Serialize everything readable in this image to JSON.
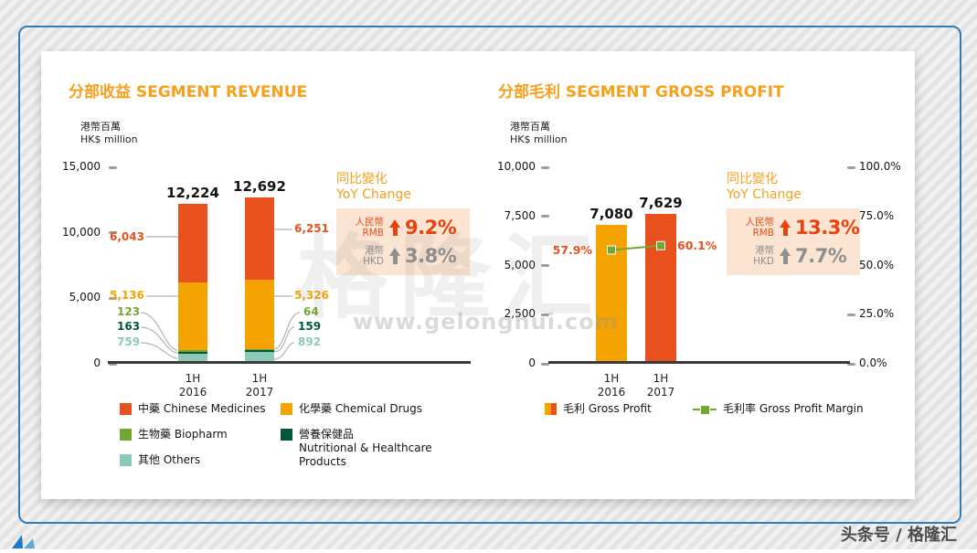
{
  "page": {
    "watermark_brand": "格隆汇",
    "watermark_url": "www.gelonghui.com",
    "footer_credit": "头条号 / 格隆汇"
  },
  "chart_data": [
    {
      "type": "bar",
      "stacked": true,
      "title": "分部收益 SEGMENT REVENUE",
      "unit_cn": "港幣百萬",
      "unit_en": "HK$ million",
      "ylabel": "HK$ million",
      "ylim": [
        0,
        15000
      ],
      "yticks": [
        {
          "value": 15000,
          "label": "15,000"
        },
        {
          "value": 10000,
          "label": "10,000"
        },
        {
          "value": 5000,
          "label": "5,000"
        },
        {
          "value": 0,
          "label": "0"
        }
      ],
      "categories": [
        "1H 2016",
        "1H 2017"
      ],
      "totals": [
        12224,
        12692
      ],
      "total_labels": [
        "12,224",
        "12,692"
      ],
      "series": [
        {
          "name_cn": "中藥",
          "name_en": "Chinese Medicines",
          "color": "#E8501E",
          "values": [
            6043,
            6251
          ],
          "labels": [
            "6,043",
            "6,251"
          ]
        },
        {
          "name_cn": "化學藥",
          "name_en": "Chemical Drugs",
          "color": "#F5A300",
          "values": [
            5136,
            5326
          ],
          "labels": [
            "5,136",
            "5,326"
          ]
        },
        {
          "name_cn": "生物藥",
          "name_en": "Biopharm",
          "color": "#71A830",
          "values": [
            123,
            64
          ],
          "labels": [
            "123",
            "64"
          ]
        },
        {
          "name_cn": "營養保健品",
          "name_en": "Nutritional & Healthcare Products",
          "color": "#00573C",
          "values": [
            163,
            159
          ],
          "labels": [
            "163",
            "159"
          ]
        },
        {
          "name_cn": "其他",
          "name_en": "Others",
          "color": "#8DC9B8",
          "values": [
            759,
            892
          ],
          "labels": [
            "759",
            "892"
          ]
        }
      ],
      "yoy": {
        "title_cn": "同比變化",
        "title_en": "YoY Change",
        "rows": [
          {
            "label_cn": "人民幣",
            "label_en": "RMB",
            "value": "9.2%"
          },
          {
            "label_cn": "港幣",
            "label_en": "HKD",
            "value": "3.8%"
          }
        ]
      }
    },
    {
      "type": "bar+line",
      "title": "分部毛利 SEGMENT GROSS PROFIT",
      "unit_cn": "港幣百萬",
      "unit_en": "HK$ million",
      "ylabel": "HK$ million",
      "ylim": [
        0,
        10000
      ],
      "y2lim": [
        0,
        100
      ],
      "yticks": [
        {
          "value": 10000,
          "label": "10,000"
        },
        {
          "value": 7500,
          "label": "7,500"
        },
        {
          "value": 5000,
          "label": "5,000"
        },
        {
          "value": 2500,
          "label": "2,500"
        },
        {
          "value": 0,
          "label": "0"
        }
      ],
      "y2ticks": [
        {
          "value": 100,
          "label": "100.0%"
        },
        {
          "value": 75,
          "label": "75.0%"
        },
        {
          "value": 50,
          "label": "50.0%"
        },
        {
          "value": 25,
          "label": "25.0%"
        },
        {
          "value": 0,
          "label": "0.0%"
        }
      ],
      "categories": [
        "1H 2016",
        "1H 2017"
      ],
      "bars": {
        "name_cn": "毛利",
        "name_en": "Gross Profit",
        "colors": [
          "#F5A300",
          "#E8501E"
        ],
        "values": [
          7080,
          7629
        ],
        "labels": [
          "7,080",
          "7,629"
        ]
      },
      "line": {
        "name_cn": "毛利率",
        "name_en": "Gross Profit Margin",
        "color": "#71A830",
        "values": [
          57.9,
          60.1
        ],
        "labels": [
          "57.9%",
          "60.1%"
        ]
      },
      "yoy": {
        "title_cn": "同比變化",
        "title_en": "YoY Change",
        "rows": [
          {
            "label_cn": "人民幣",
            "label_en": "RMB",
            "value": "13.3%"
          },
          {
            "label_cn": "港幣",
            "label_en": "HKD",
            "value": "7.7%"
          }
        ]
      }
    }
  ]
}
